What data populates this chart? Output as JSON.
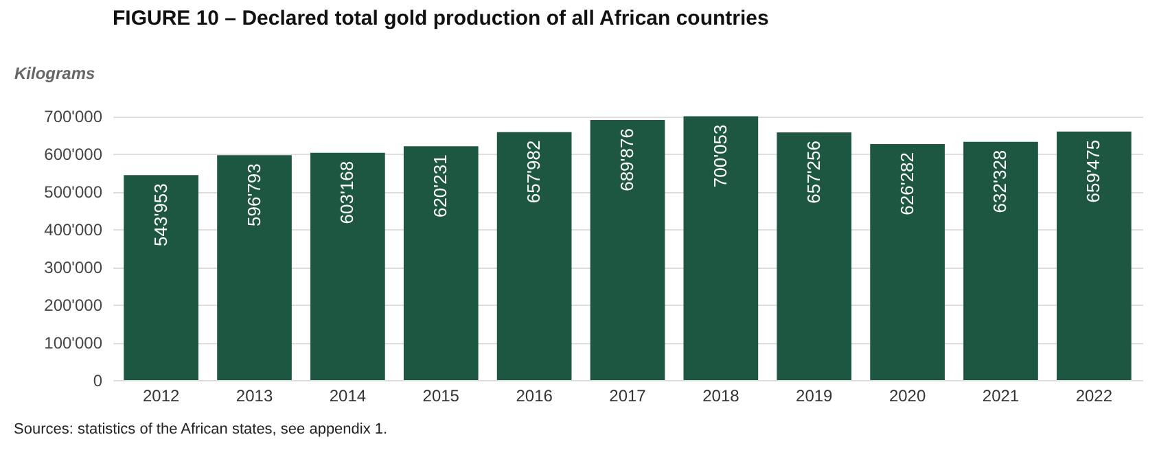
{
  "chart_data": {
    "type": "bar",
    "title": "FIGURE 10 – Declared total gold production of all African countries",
    "ylabel": "Kilograms",
    "categories": [
      "2012",
      "2013",
      "2014",
      "2015",
      "2016",
      "2017",
      "2018",
      "2019",
      "2020",
      "2021",
      "2022"
    ],
    "series": [
      {
        "color": "#1e5741",
        "values": [
          543953,
          596793,
          603168,
          620231,
          657982,
          689876,
          700053,
          657256,
          626282,
          632328,
          659475
        ],
        "value_labels": [
          "543'953",
          "596'793",
          "603'168",
          "620'231",
          "657'982",
          "689'876",
          "700'053",
          "657'256",
          "626'282",
          "632'328",
          "659'475"
        ]
      }
    ],
    "ylim": [
      0,
      710000
    ],
    "yticks": [
      {
        "value": 0,
        "label": "0"
      },
      {
        "value": 100000,
        "label": "100'000"
      },
      {
        "value": 200000,
        "label": "200'000"
      },
      {
        "value": 300000,
        "label": "300'000"
      },
      {
        "value": 400000,
        "label": "400'000"
      },
      {
        "value": 500000,
        "label": "500'000"
      },
      {
        "value": 600000,
        "label": "600'000"
      },
      {
        "value": 700000,
        "label": "700'000"
      }
    ],
    "grid": "y",
    "annotations": [
      "Sources: statistics of the African states, see appendix 1."
    ]
  }
}
